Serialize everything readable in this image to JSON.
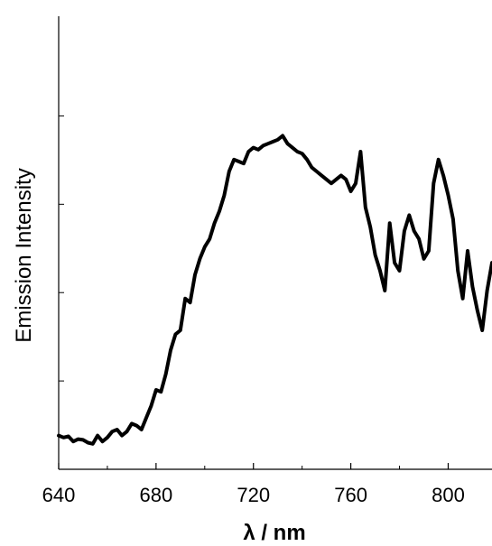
{
  "chart_data": {
    "type": "line",
    "title": "",
    "xlabel": "λ / nm",
    "ylabel": "Emission Intensity",
    "xlim": [
      640,
      818
    ],
    "ylim": [
      0,
      1
    ],
    "x_ticks": [
      640,
      680,
      720,
      760,
      800
    ],
    "x_tick_labels": [
      "640",
      "680",
      "720",
      "760",
      "800"
    ],
    "y_ticks_shown": false,
    "grid": false,
    "legend": "none",
    "line_color": "#000000",
    "series": [
      {
        "x": [
          640,
          642,
          644,
          646,
          648,
          650,
          652,
          654,
          656,
          658,
          660,
          662,
          664,
          666,
          668,
          670,
          672,
          674,
          676,
          678,
          680,
          682,
          684,
          686,
          688,
          690,
          692,
          694,
          696,
          698,
          700,
          702,
          704,
          706,
          708,
          710,
          712,
          714,
          716,
          718,
          720,
          722,
          724,
          726,
          728,
          730,
          732,
          734,
          736,
          738,
          740,
          742,
          744,
          746,
          748,
          750,
          752,
          754,
          756,
          758,
          760,
          762,
          764,
          766,
          768,
          770,
          772,
          774,
          776,
          778,
          780,
          782,
          784,
          786,
          788,
          790,
          792,
          794,
          796,
          798,
          800,
          802,
          804,
          806,
          808,
          810,
          812,
          814,
          816,
          818
        ],
        "y": [
          0.085,
          0.08,
          0.083,
          0.07,
          0.076,
          0.074,
          0.067,
          0.064,
          0.085,
          0.07,
          0.08,
          0.095,
          0.1,
          0.085,
          0.095,
          0.115,
          0.11,
          0.1,
          0.13,
          0.16,
          0.2,
          0.195,
          0.24,
          0.3,
          0.34,
          0.35,
          0.43,
          0.42,
          0.49,
          0.53,
          0.56,
          0.58,
          0.62,
          0.65,
          0.69,
          0.75,
          0.78,
          0.775,
          0.77,
          0.8,
          0.81,
          0.805,
          0.815,
          0.82,
          0.825,
          0.83,
          0.84,
          0.82,
          0.81,
          0.8,
          0.795,
          0.78,
          0.76,
          0.75,
          0.74,
          0.73,
          0.72,
          0.73,
          0.74,
          0.73,
          0.7,
          0.72,
          0.8,
          0.66,
          0.61,
          0.54,
          0.5,
          0.45,
          0.62,
          0.52,
          0.5,
          0.6,
          0.64,
          0.6,
          0.58,
          0.53,
          0.55,
          0.72,
          0.78,
          0.74,
          0.69,
          0.63,
          0.5,
          0.43,
          0.55,
          0.46,
          0.4,
          0.35,
          0.45,
          0.52
        ]
      }
    ]
  }
}
